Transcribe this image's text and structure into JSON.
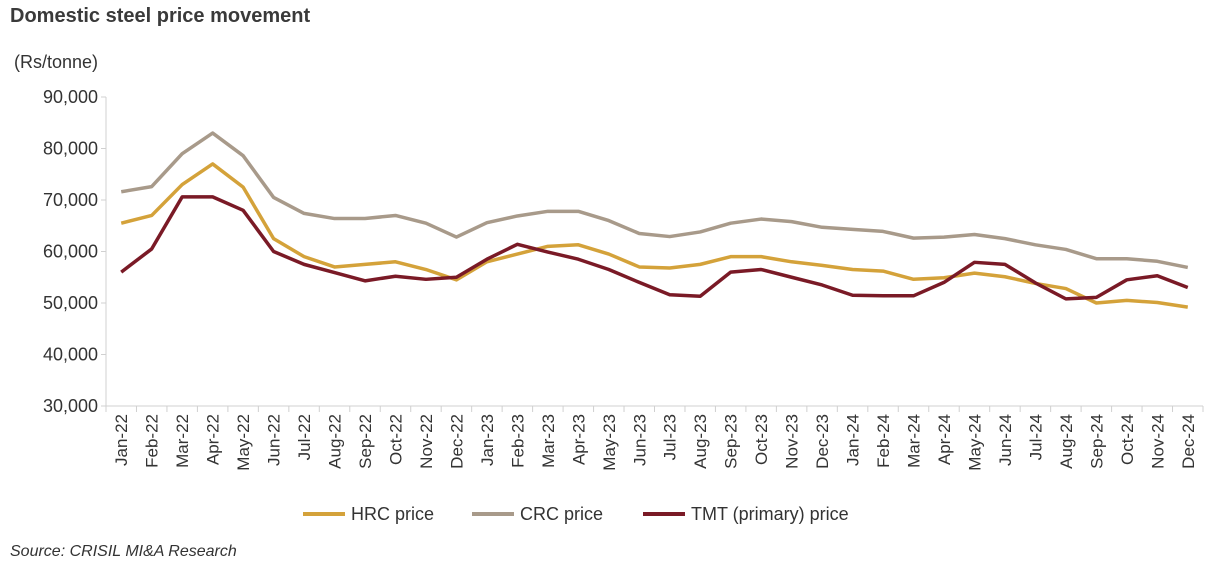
{
  "title": "Domestic steel price movement",
  "source": "Source: CRISIL MI&A Research",
  "chart_data": {
    "type": "line",
    "title": "Domestic steel price movement",
    "ylabel": "(Rs/tonne)",
    "ylim": [
      30000,
      90000
    ],
    "yticks": [
      "30,000",
      "40,000",
      "50,000",
      "60,000",
      "70,000",
      "80,000",
      "90,000"
    ],
    "grid": false,
    "legend": "bottom",
    "categories": [
      "Jan-22",
      "Feb-22",
      "Mar-22",
      "Apr-22",
      "May-22",
      "Jun-22",
      "Jul-22",
      "Aug-22",
      "Sep-22",
      "Oct-22",
      "Nov-22",
      "Dec-22",
      "Jan-23",
      "Feb-23",
      "Mar-23",
      "Apr-23",
      "May-23",
      "Jun-23",
      "Jul-23",
      "Aug-23",
      "Sep-23",
      "Oct-23",
      "Nov-23",
      "Dec-23",
      "Jan-24",
      "Feb-24",
      "Mar-24",
      "Apr-24",
      "May-24",
      "Jun-24",
      "Jul-24",
      "Aug-24",
      "Sep-24",
      "Oct-24",
      "Nov-24",
      "Dec-24"
    ],
    "series": [
      {
        "name": "HRC price",
        "color": "#d4a23a",
        "values": [
          65500,
          67000,
          73000,
          77000,
          72500,
          62500,
          59000,
          57000,
          57500,
          58000,
          56500,
          54500,
          58000,
          59500,
          61000,
          61300,
          59500,
          57000,
          56800,
          57500,
          59000,
          59000,
          58000,
          57300,
          56500,
          56200,
          54600,
          54900,
          55800,
          55100,
          53800,
          52800,
          50000,
          50500,
          50100,
          49200
        ]
      },
      {
        "name": "CRC price",
        "color": "#a89a8a",
        "values": [
          71600,
          72600,
          79000,
          83000,
          78600,
          70500,
          67400,
          66400,
          66400,
          67000,
          65500,
          62800,
          65600,
          66900,
          67800,
          67800,
          66000,
          63500,
          62900,
          63800,
          65500,
          66300,
          65800,
          64700,
          64300,
          63900,
          62600,
          62800,
          63300,
          62500,
          61300,
          60400,
          58600,
          58600,
          58100,
          56900
        ]
      },
      {
        "name": "TMT (primary) price",
        "color": "#7a1a26",
        "values": [
          56000,
          60500,
          70600,
          70600,
          68000,
          60000,
          57500,
          55900,
          54300,
          55200,
          54600,
          55000,
          58500,
          61400,
          59900,
          58500,
          56500,
          54000,
          51600,
          51300,
          56000,
          56500,
          55000,
          53500,
          51500,
          51400,
          51400,
          54000,
          57900,
          57500,
          53900,
          50800,
          51100,
          54500,
          55300,
          53000
        ]
      }
    ]
  }
}
